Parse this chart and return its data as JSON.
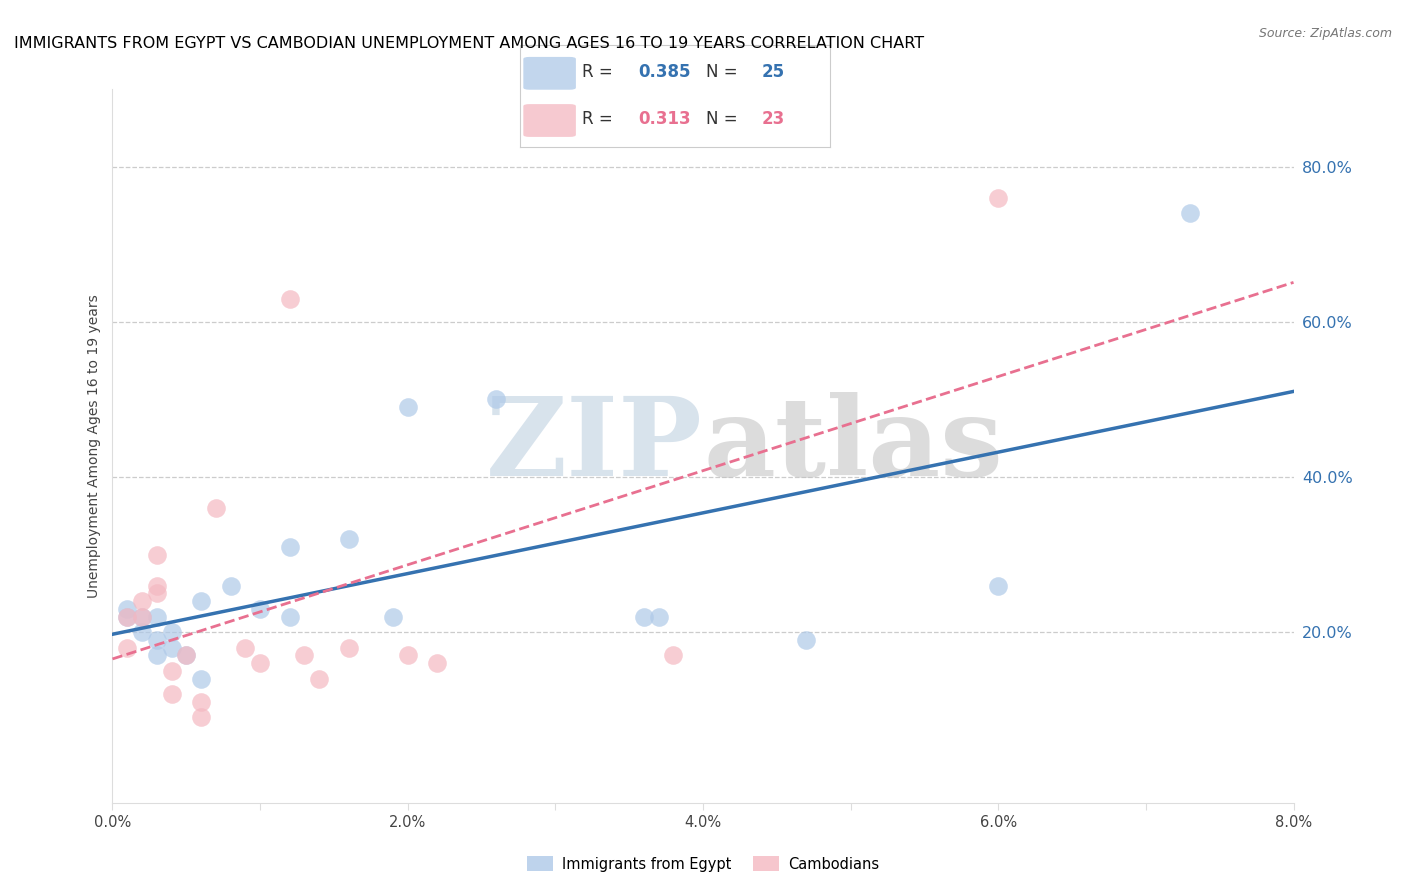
{
  "title": "IMMIGRANTS FROM EGYPT VS CAMBODIAN UNEMPLOYMENT AMONG AGES 16 TO 19 YEARS CORRELATION CHART",
  "source": "Source: ZipAtlas.com",
  "ylabel": "Unemployment Among Ages 16 to 19 years",
  "xlim": [
    0.0,
    0.08
  ],
  "ylim": [
    -0.02,
    0.9
  ],
  "xticks": [
    0.0,
    0.01,
    0.02,
    0.03,
    0.04,
    0.05,
    0.06,
    0.07,
    0.08
  ],
  "xticklabels": [
    "0.0%",
    "",
    "2.0%",
    "",
    "4.0%",
    "",
    "6.0%",
    "",
    "8.0%"
  ],
  "right_yticks": [
    0.2,
    0.4,
    0.6,
    0.8
  ],
  "right_yticklabels": [
    "20.0%",
    "40.0%",
    "60.0%",
    "80.0%"
  ],
  "series1_label": "Immigrants from Egypt",
  "series2_label": "Cambodians",
  "series1_color": "#aec9e8",
  "series2_color": "#f4b8c1",
  "trendline1_color": "#3572b0",
  "trendline2_color": "#e87090",
  "watermark": "ZIPatlas",
  "watermark_color_zip": "#c8d8ea",
  "watermark_color_atlas": "#c8c8c8",
  "blue_r": "0.385",
  "blue_n": "25",
  "pink_r": "0.313",
  "pink_n": "23",
  "blue_data_x": [
    0.001,
    0.001,
    0.002,
    0.002,
    0.003,
    0.003,
    0.003,
    0.004,
    0.004,
    0.005,
    0.006,
    0.006,
    0.008,
    0.01,
    0.012,
    0.012,
    0.016,
    0.019,
    0.02,
    0.026,
    0.036,
    0.037,
    0.047,
    0.06,
    0.073
  ],
  "blue_data_y": [
    0.22,
    0.23,
    0.2,
    0.22,
    0.22,
    0.19,
    0.17,
    0.2,
    0.18,
    0.17,
    0.14,
    0.24,
    0.26,
    0.23,
    0.31,
    0.22,
    0.32,
    0.22,
    0.49,
    0.5,
    0.22,
    0.22,
    0.19,
    0.26,
    0.74
  ],
  "pink_data_x": [
    0.001,
    0.001,
    0.002,
    0.002,
    0.003,
    0.003,
    0.003,
    0.004,
    0.004,
    0.005,
    0.006,
    0.006,
    0.007,
    0.009,
    0.01,
    0.012,
    0.013,
    0.014,
    0.016,
    0.02,
    0.022,
    0.038,
    0.06
  ],
  "pink_data_y": [
    0.22,
    0.18,
    0.24,
    0.22,
    0.3,
    0.26,
    0.25,
    0.12,
    0.15,
    0.17,
    0.09,
    0.11,
    0.36,
    0.18,
    0.16,
    0.63,
    0.17,
    0.14,
    0.18,
    0.17,
    0.16,
    0.17,
    0.76
  ],
  "marker_size": 180,
  "title_fontsize": 11.5,
  "tick_fontsize": 10.5
}
